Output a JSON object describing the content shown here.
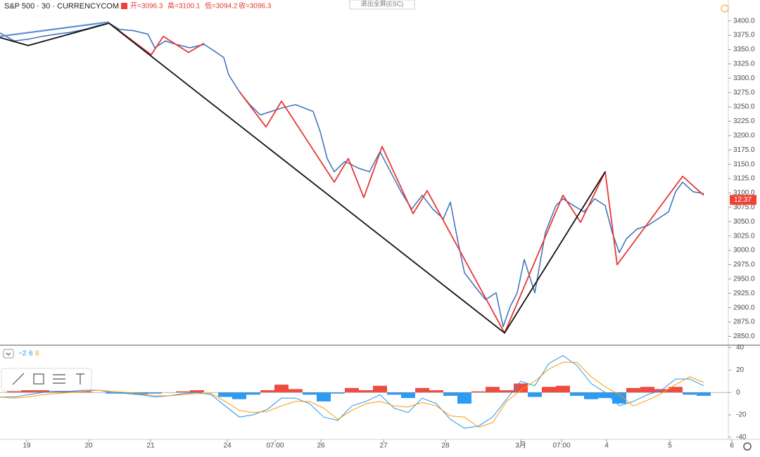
{
  "chart_data": [
    {
      "type": "line",
      "title": "S&P 500 · 30 · CURRENCYCOM",
      "ohlc": [
        "开=3096.3",
        "高=3100.1",
        "低=3094.2",
        "收=3096.3"
      ],
      "exit_button": "退出全屏(ESC)",
      "price_tag": {
        "value": 3088,
        "label": "12:37"
      },
      "grid": false,
      "xlim": [
        0,
        1035
      ],
      "xticks": [
        {
          "value": 38,
          "label": "19"
        },
        {
          "value": 126,
          "label": "20"
        },
        {
          "value": 214,
          "label": "21"
        },
        {
          "value": 323,
          "label": "24"
        },
        {
          "value": 391,
          "label": "07:00"
        },
        {
          "value": 456,
          "label": "26"
        },
        {
          "value": 545,
          "label": "27"
        },
        {
          "value": 633,
          "label": "28"
        },
        {
          "value": 740,
          "label": "3月"
        },
        {
          "value": 798,
          "label": "07:00"
        },
        {
          "value": 862,
          "label": "4"
        },
        {
          "value": 952,
          "label": "5"
        },
        {
          "value": 1040,
          "label": "6"
        }
      ],
      "ylim": [
        2842,
        3418
      ],
      "yticks": [
        {
          "value": 2850,
          "label": "2850.0"
        },
        {
          "value": 2875,
          "label": "2875.0"
        },
        {
          "value": 2900,
          "label": "2900.0"
        },
        {
          "value": 2925,
          "label": "2925.0"
        },
        {
          "value": 2950,
          "label": "2950.0"
        },
        {
          "value": 2975,
          "label": "2975.0"
        },
        {
          "value": 3000,
          "label": "3000.0"
        },
        {
          "value": 3025,
          "label": "3025.0"
        },
        {
          "value": 3050,
          "label": "3050.0"
        },
        {
          "value": 3075,
          "label": "3075.0"
        },
        {
          "value": 3100,
          "label": "3100.0"
        },
        {
          "value": 3125,
          "label": "3125.0"
        },
        {
          "value": 3150,
          "label": "3150.0"
        },
        {
          "value": 3175,
          "label": "3175.0"
        },
        {
          "value": 3200,
          "label": "3200.0"
        },
        {
          "value": 3225,
          "label": "3225.0"
        },
        {
          "value": 3250,
          "label": "3250.0"
        },
        {
          "value": 3275,
          "label": "3275.0"
        },
        {
          "value": 3300,
          "label": "3300.0"
        },
        {
          "value": 3325,
          "label": "3325.0"
        },
        {
          "value": 3350,
          "label": "3350.0"
        },
        {
          "value": 3375,
          "label": "3375.0"
        },
        {
          "value": 3400,
          "label": "3400.0"
        }
      ],
      "series": [
        {
          "color": "#3a6fb7",
          "width": 1.5,
          "x": [
            0,
            20,
            40,
            60,
            80,
            100,
            120,
            140,
            155,
            170,
            190,
            210,
            220,
            235,
            250,
            270,
            290,
            305,
            318,
            325,
            340,
            355,
            370,
            385,
            400,
            420,
            445,
            455,
            465,
            475,
            490,
            510,
            525,
            540,
            555,
            570,
            585,
            600,
            615,
            630,
            640,
            650,
            660,
            675,
            690,
            705,
            715,
            725,
            735,
            745,
            760,
            775,
            790,
            800,
            815,
            830,
            845,
            860,
            870,
            880,
            890,
            905,
            920,
            935,
            950,
            960,
            970,
            985,
            1000
          ],
          "values": [
            3379,
            3365,
            3368,
            3373,
            3377,
            3380,
            3385,
            3392,
            3396,
            3385,
            3383,
            3377,
            3353,
            3365,
            3359,
            3353,
            3359,
            3347,
            3336,
            3306,
            3277,
            3254,
            3236,
            3242,
            3248,
            3254,
            3242,
            3207,
            3160,
            3137,
            3155,
            3143,
            3137,
            3172,
            3137,
            3102,
            3072,
            3096,
            3072,
            3055,
            3084,
            3020,
            2961,
            2937,
            2914,
            2926,
            2867,
            2902,
            2926,
            2984,
            2926,
            3031,
            3078,
            3090,
            3078,
            3067,
            3090,
            3078,
            3031,
            2996,
            3020,
            3037,
            3043,
            3055,
            3067,
            3102,
            3119,
            3102,
            3099
          ]
        },
        {
          "color": "#e53935",
          "width": 1.8,
          "x": [
            155,
            215,
            232,
            268,
            290,
            320,
            340,
            378,
            400,
            475,
            495,
            517,
            543,
            587,
            607,
            717,
            800,
            825,
            860,
            877,
            970,
            1000
          ],
          "values": [
            3396,
            3341,
            3373,
            3345,
            3361,
            null,
            3277,
            3215,
            3260,
            3119,
            3160,
            3092,
            3181,
            3064,
            3104,
            2856,
            3096,
            3049,
            3137,
            2975,
            3129,
            3096
          ]
        },
        {
          "color": "#111111",
          "width": 1.8,
          "x": [
            0,
            40,
            155,
            717,
            860
          ],
          "values": [
            3371,
            3357,
            3396,
            2856,
            3137
          ]
        },
        {
          "color": "#5b8dd9",
          "width": 2.2,
          "x": [
            0,
            155
          ],
          "values": [
            3373,
            3398
          ]
        }
      ]
    },
    {
      "type": "macd",
      "params": [
        "−2",
        "6",
        "8"
      ],
      "xlim": [
        0,
        1035
      ],
      "ylim": [
        -42,
        41
      ],
      "yticks": [
        40,
        20,
        0,
        -20,
        -40
      ],
      "pos_color": "#ef4136",
      "neg_color": "#2196f3",
      "x": [
        0,
        20,
        40,
        60,
        80,
        100,
        120,
        140,
        160,
        180,
        200,
        220,
        240,
        260,
        280,
        300,
        320,
        340,
        360,
        380,
        400,
        420,
        440,
        460,
        480,
        500,
        520,
        540,
        560,
        580,
        600,
        620,
        640,
        660,
        680,
        700,
        720,
        740,
        760,
        780,
        800,
        820,
        840,
        860,
        880,
        900,
        920,
        940,
        960,
        980,
        1000
      ],
      "histogram": [
        0,
        1,
        2,
        2,
        1,
        1,
        1,
        0,
        -1,
        -1,
        -2,
        -1,
        0,
        1,
        2,
        0,
        -4,
        -6,
        -2,
        2,
        7,
        3,
        -2,
        -8,
        -1,
        4,
        2,
        6,
        -2,
        -5,
        4,
        2,
        -3,
        -10,
        1,
        5,
        2,
        8,
        -4,
        5,
        6,
        -3,
        -6,
        -5,
        -10,
        4,
        5,
        3,
        5,
        -2,
        -3
      ],
      "series": [
        {
          "color": "#2196f3",
          "values": [
            -4,
            -4,
            -2,
            0,
            1,
            1,
            2,
            2,
            0,
            -1,
            -2,
            -4,
            -3,
            -1,
            0,
            -2,
            -12,
            -22,
            -20,
            -15,
            -5,
            -5,
            -10,
            -22,
            -25,
            -12,
            -8,
            -2,
            -14,
            -18,
            -5,
            -10,
            -24,
            -32,
            -30,
            -22,
            -6,
            10,
            6,
            26,
            33,
            24,
            8,
            0,
            -12,
            -8,
            -2,
            2,
            12,
            12,
            6
          ]
        },
        {
          "color": "#ff9800",
          "values": [
            -4,
            -5,
            -4,
            -2,
            -1,
            0,
            1,
            2,
            1,
            0,
            -1,
            -3,
            -3,
            -2,
            -1,
            -1,
            -8,
            -16,
            -18,
            -17,
            -12,
            -8,
            -8,
            -14,
            -24,
            -16,
            -10,
            -8,
            -12,
            -13,
            -9,
            -12,
            -21,
            -22,
            -31,
            -27,
            -8,
            2,
            10,
            21,
            27,
            27,
            14,
            5,
            -2,
            -12,
            -7,
            -1,
            7,
            14,
            9
          ]
        }
      ]
    }
  ]
}
